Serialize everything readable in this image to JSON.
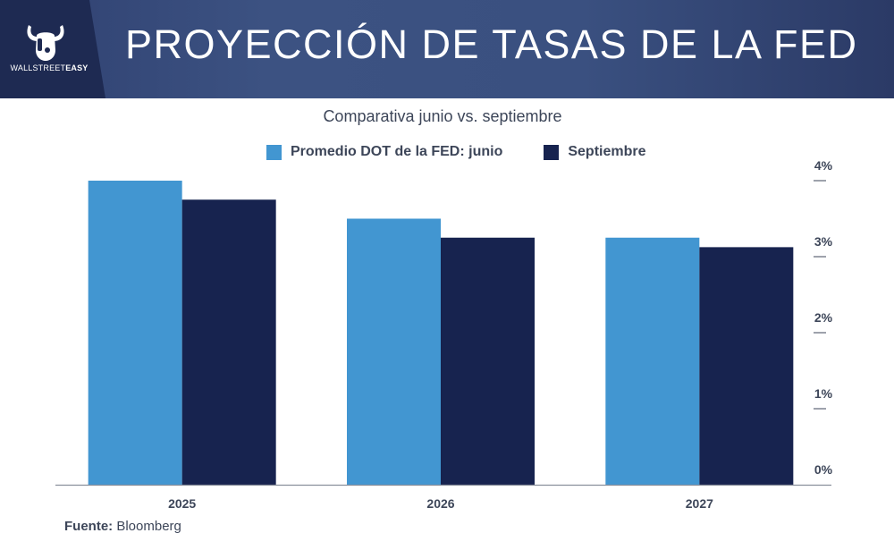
{
  "header": {
    "logo_text_light": "WALLSTREET",
    "logo_text_bold": "EASY",
    "title": "PROYECCIÓN DE TASAS DE LA FED"
  },
  "colors": {
    "june": "#4296d1",
    "september": "#17234f",
    "header_bg": "#34477a"
  },
  "footer": {
    "source_label": "Fuente:",
    "source_value": " Bloomberg"
  },
  "chart_data": {
    "type": "bar",
    "title": "Comparativa junio vs. septiembre",
    "categories": [
      "2025",
      "2026",
      "2027"
    ],
    "series": [
      {
        "name": "Promedio DOT de la FED: junio",
        "values": [
          4.0,
          3.5,
          3.25
        ]
      },
      {
        "name": "Septiembre",
        "values": [
          3.75,
          3.25,
          3.125
        ]
      }
    ],
    "yticks": [
      "0%",
      "1%",
      "2%",
      "3%",
      "4%"
    ],
    "ylim": [
      0,
      4
    ],
    "y_axis_side": "right",
    "grid": false,
    "legend_position": "top"
  }
}
